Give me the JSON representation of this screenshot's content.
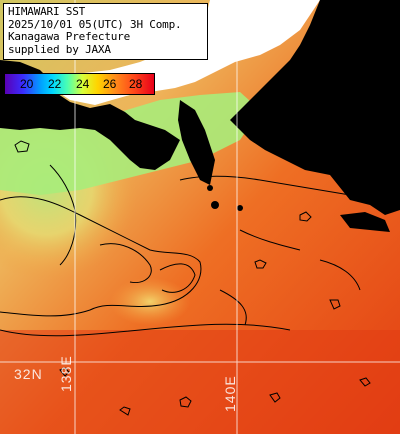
{
  "info": {
    "line1": "HIMAWARI SST",
    "line2": "2025/10/01 05(UTC) 3H Comp.",
    "line3": "Kanagawa Prefecture",
    "line4": "supplied by JAXA"
  },
  "legend": {
    "ticks": [
      "20",
      "22",
      "24",
      "26",
      "28"
    ]
  },
  "grid_labels": {
    "lat": "32N",
    "lon1": "138E",
    "lon2": "140E"
  },
  "colors": {
    "land": "#000000",
    "cloud": "#ffffff",
    "sst_cool": "#b8f07a",
    "sst_mid": "#f0d070",
    "sst_warm": "#f06a20",
    "sst_hot": "#e83a14",
    "grid": "#ffffff"
  }
}
